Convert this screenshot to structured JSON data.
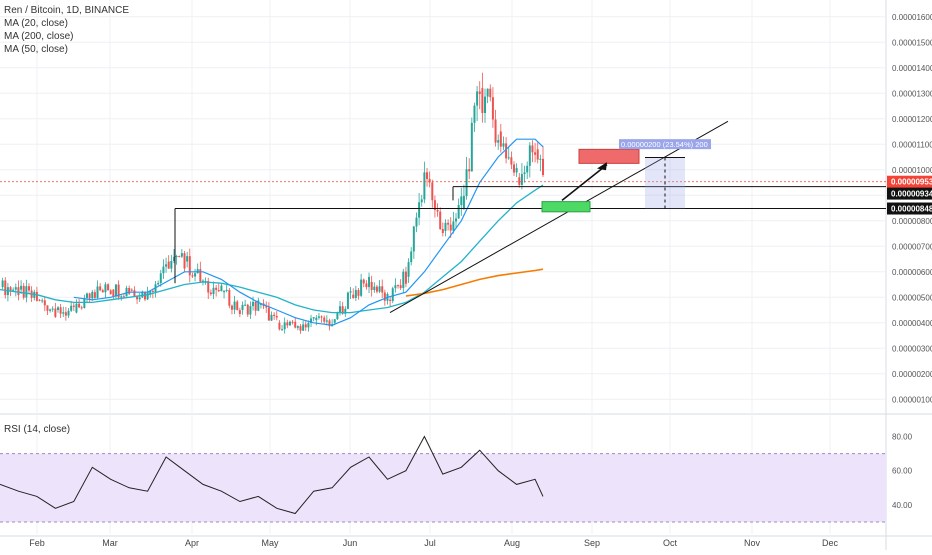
{
  "legend": {
    "title": "Ren / Bitcoin, 1D, BINANCE",
    "ma20": "MA (20, close)",
    "ma200": "MA (200, close)",
    "ma50": "MA (50, close)",
    "rsi": "RSI (14, close)"
  },
  "colors": {
    "up": "#26a69a",
    "down": "#ef5350",
    "ma20": "#2196f3",
    "ma50": "#23b3c8",
    "ma200": "#f57c00",
    "rsi_line": "#222222",
    "rsi_band": "#ede3fb",
    "price_line": "#f44336",
    "grid": "#eef0f3",
    "target_box": "#ef6b6b",
    "entry_box": "#4cd964",
    "measure": "#9aa5ea"
  },
  "price_axis": {
    "ticks": [
      "0.00001600",
      "0.00001500",
      "0.00001400",
      "0.00001300",
      "0.00001200",
      "0.00001100",
      "0.00001000",
      "0.00000900",
      "0.00000800",
      "0.00000700",
      "0.00000600",
      "0.00000500",
      "0.00000400",
      "0.00000300",
      "0.00000200",
      "0.00000100"
    ],
    "current_price": "0.00000953",
    "level_1": "0.00000934",
    "level_2": "0.00000848"
  },
  "rsi_axis": {
    "ticks": [
      "80.00",
      "60.00",
      "40.00"
    ]
  },
  "time_axis": {
    "labels": [
      "Feb",
      "Mar",
      "Apr",
      "May",
      "Jun",
      "Jul",
      "Aug",
      "Sep",
      "Oct",
      "Nov",
      "Dec"
    ]
  },
  "measure_label": "0.00000200 (23.54%) 200",
  "chart_data": {
    "type": "candlestick",
    "title": "Ren / Bitcoin, 1D, BINANCE",
    "unit": "BTC",
    "x": [
      "2019-01-20",
      "2019-01-27",
      "2019-02-03",
      "2019-02-10",
      "2019-02-17",
      "2019-02-24",
      "2019-03-03",
      "2019-03-10",
      "2019-03-17",
      "2019-03-24",
      "2019-03-31",
      "2019-04-07",
      "2019-04-14",
      "2019-04-21",
      "2019-04-28",
      "2019-05-05",
      "2019-05-12",
      "2019-05-19",
      "2019-05-26",
      "2019-06-02",
      "2019-06-09",
      "2019-06-16",
      "2019-06-23",
      "2019-06-30",
      "2019-07-07",
      "2019-07-14",
      "2019-07-21",
      "2019-07-28",
      "2019-08-04",
      "2019-08-11",
      "2019-08-14"
    ],
    "close": [
      5.4e-06,
      5.3e-06,
      4.9e-06,
      4.5e-06,
      4.4e-06,
      5.2e-06,
      5.3e-06,
      5.3e-06,
      5.1e-06,
      6.4e-06,
      6.4e-06,
      5.6e-06,
      5.2e-06,
      4.5e-06,
      4.7e-06,
      4e-06,
      3.8e-06,
      4.1e-06,
      4e-06,
      5.1e-06,
      5.6e-06,
      4.9e-06,
      5.8e-06,
      9.9e-06,
      7.6e-06,
      8.5e-06,
      1.32e-05,
      1.15e-05,
      9.7e-06,
      1.08e-05,
      9.53e-06
    ],
    "ma20": [
      null,
      null,
      null,
      null,
      5e-06,
      4.9e-06,
      5e-06,
      5.2e-06,
      5.2e-06,
      5.6e-06,
      6e-06,
      6e-06,
      5.7e-06,
      5.2e-06,
      4.8e-06,
      4.5e-06,
      4.2e-06,
      4e-06,
      3.9e-06,
      4.2e-06,
      4.7e-06,
      5e-06,
      5.2e-06,
      6e-06,
      7e-06,
      8e-06,
      9.5e-06,
      1.05e-05,
      1.12e-05,
      1.12e-05,
      1.09e-05
    ],
    "ma50": [
      5.3e-06,
      5.2e-06,
      5.1e-06,
      4.9e-06,
      4.8e-06,
      4.8e-06,
      4.9e-06,
      5e-06,
      5.1e-06,
      5.3e-06,
      5.5e-06,
      5.6e-06,
      5.55e-06,
      5.4e-06,
      5.2e-06,
      5e-06,
      4.7e-06,
      4.5e-06,
      4.4e-06,
      4.4e-06,
      4.5e-06,
      4.6e-06,
      4.8e-06,
      5.2e-06,
      5.8e-06,
      6.4e-06,
      7.2e-06,
      8e-06,
      8.7e-06,
      9.2e-06,
      9.4e-06
    ],
    "ma200": [
      null,
      null,
      null,
      null,
      null,
      null,
      null,
      null,
      null,
      null,
      null,
      null,
      null,
      null,
      null,
      null,
      null,
      null,
      null,
      null,
      null,
      null,
      5.05e-06,
      5.15e-06,
      5.3e-06,
      5.5e-06,
      5.7e-06,
      5.85e-06,
      5.95e-06,
      6.05e-06,
      6.1e-06
    ],
    "rsi": [
      52,
      48,
      45,
      38,
      42,
      62,
      55,
      50,
      48,
      68,
      60,
      52,
      48,
      42,
      45,
      38,
      35,
      48,
      50,
      62,
      68,
      55,
      60,
      80,
      58,
      62,
      72,
      60,
      52,
      55,
      45
    ],
    "rsi_levels": [
      70,
      30
    ],
    "ylim": [
      5e-07,
      1.65e-05
    ],
    "levels": [
      9.34e-06,
      8.48e-06
    ],
    "current_price": 9.53e-06
  }
}
